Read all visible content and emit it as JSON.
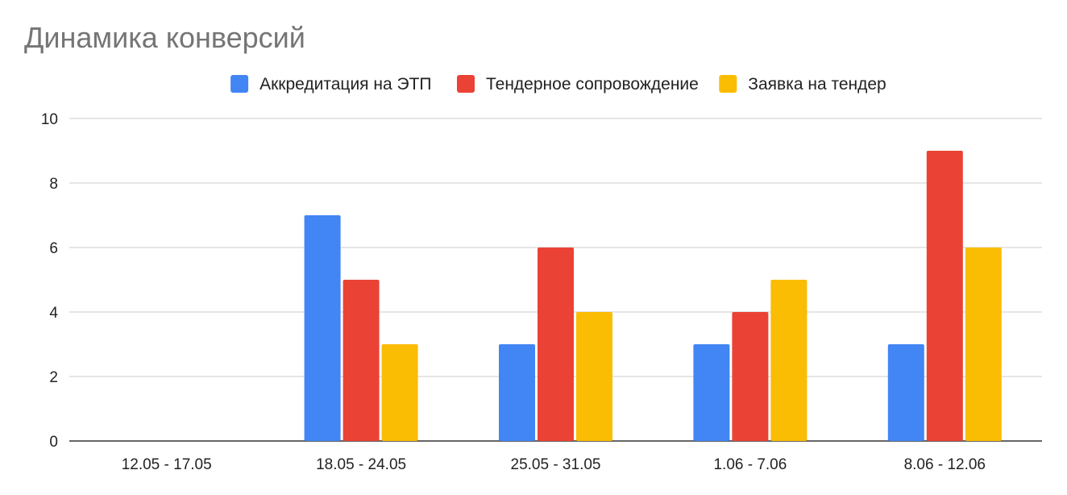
{
  "chart_data": {
    "type": "bar",
    "title": "Динамика конверсий",
    "xlabel": "",
    "ylabel": "",
    "categories": [
      "12.05 - 17.05",
      "18.05 - 24.05",
      "25.05 - 31.05",
      "1.06 - 7.06",
      "8.06 - 12.06"
    ],
    "series": [
      {
        "name": "Аккредитация на ЭТП",
        "color": "#4285f4",
        "values": [
          0,
          7,
          3,
          3,
          3
        ]
      },
      {
        "name": "Тендерное сопровождение",
        "color": "#ea4335",
        "values": [
          0,
          5,
          6,
          4,
          9
        ]
      },
      {
        "name": "Заявка на тендер",
        "color": "#fbbc04",
        "values": [
          0,
          3,
          4,
          5,
          6
        ]
      }
    ],
    "ylim": [
      0,
      10
    ],
    "yticks": [
      0,
      2,
      4,
      6,
      8,
      10
    ],
    "grid": true,
    "legend_position": "top-center"
  }
}
